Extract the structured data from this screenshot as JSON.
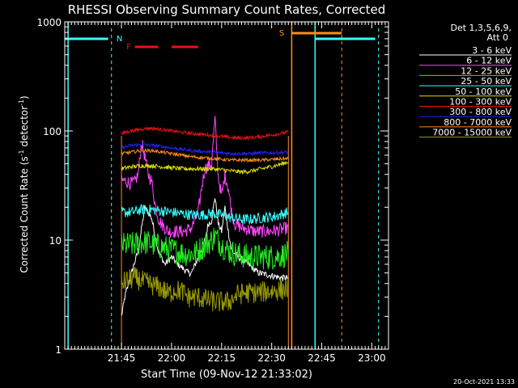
{
  "chart_data": {
    "type": "line",
    "title": "RHESSI Observing Summary Count Rates, Corrected",
    "xlabel": "Start Time (09-Nov-12 21:33:02)",
    "ylabel_main": "Corrected Count Rate (s",
    "ylabel_sup1": "-1",
    "ylabel_mid": " detector",
    "ylabel_sup2": "-1",
    "ylabel_end": ")",
    "y_scale": "log",
    "ylim": [
      1,
      1000
    ],
    "x_range_minutes": [
      -5,
      92
    ],
    "x_ticks": [
      {
        "label": "21:45",
        "t": 12
      },
      {
        "label": "22:00",
        "t": 27
      },
      {
        "label": "22:15",
        "t": 42
      },
      {
        "label": "22:30",
        "t": 57
      },
      {
        "label": "22:45",
        "t": 72
      },
      {
        "label": "23:00",
        "t": 87
      }
    ],
    "y_ticks": [
      {
        "label": "1",
        "v": 1
      },
      {
        "label": "10",
        "v": 10
      },
      {
        "label": "100",
        "v": 100
      },
      {
        "label": "1000",
        "v": 1000
      }
    ],
    "legend": {
      "header1": "Det 1,3,5,6,9,",
      "header2": "Att 0",
      "entries": [
        {
          "name": "3 - 6 keV",
          "color": "#ffffff"
        },
        {
          "name": "6 - 12 keV",
          "color": "#ff44ff"
        },
        {
          "name": "12 - 25 keV",
          "color": "#22ee22"
        },
        {
          "name": "25 - 50 keV",
          "color": "#33ffff"
        },
        {
          "name": "50 - 100 keV",
          "color": "#dddd00"
        },
        {
          "name": "100 - 300 keV",
          "color": "#ee1111"
        },
        {
          "name": "300 - 800 keV",
          "color": "#2222ff"
        },
        {
          "name": "800 - 7000 keV",
          "color": "#ff8c1a"
        },
        {
          "name": "7000 - 15000 keV",
          "color": "#999900"
        }
      ]
    },
    "series": [
      {
        "name": "3 - 6 keV",
        "color": "#ffffff",
        "points": [
          [
            12,
            2
          ],
          [
            13,
            3
          ],
          [
            15,
            5
          ],
          [
            17,
            8
          ],
          [
            19,
            20
          ],
          [
            21,
            16
          ],
          [
            23,
            8
          ],
          [
            25,
            6
          ],
          [
            27,
            7
          ],
          [
            29,
            6
          ],
          [
            32,
            5
          ],
          [
            33,
            5
          ],
          [
            35,
            7
          ],
          [
            37,
            10
          ],
          [
            38,
            14
          ],
          [
            39,
            15
          ],
          [
            40,
            25
          ],
          [
            41,
            14
          ],
          [
            42,
            12
          ],
          [
            43,
            20
          ],
          [
            44,
            12
          ],
          [
            45,
            8
          ],
          [
            47,
            7
          ],
          [
            50,
            6
          ],
          [
            53,
            5
          ],
          [
            56,
            4.8
          ],
          [
            60,
            4.5
          ],
          [
            62,
            4.5
          ]
        ]
      },
      {
        "name": "6 - 12 keV",
        "color": "#ff44ff",
        "points": [
          [
            12,
            35
          ],
          [
            13,
            35
          ],
          [
            14,
            34
          ],
          [
            15,
            33
          ],
          [
            16,
            34
          ],
          [
            17,
            40
          ],
          [
            18,
            80
          ],
          [
            19,
            58
          ],
          [
            20,
            40
          ],
          [
            21,
            35
          ],
          [
            22,
            22
          ],
          [
            23,
            16
          ],
          [
            24,
            14
          ],
          [
            25,
            13
          ],
          [
            26,
            12
          ],
          [
            28,
            12
          ],
          [
            31,
            12
          ],
          [
            33,
            13
          ],
          [
            35,
            18
          ],
          [
            36,
            30
          ],
          [
            37,
            45
          ],
          [
            38,
            48
          ],
          [
            39,
            50
          ],
          [
            40,
            130
          ],
          [
            41,
            38
          ],
          [
            42,
            25
          ],
          [
            43,
            40
          ],
          [
            44,
            30
          ],
          [
            45,
            18
          ],
          [
            46,
            14
          ],
          [
            48,
            13
          ],
          [
            52,
            12
          ],
          [
            56,
            12
          ],
          [
            60,
            12.5
          ],
          [
            62,
            13
          ]
        ]
      },
      {
        "name": "12 - 25 keV",
        "color": "#22ee22",
        "points": [
          [
            12,
            9
          ],
          [
            15,
            9
          ],
          [
            18,
            9.5
          ],
          [
            20,
            9.5
          ],
          [
            22,
            9
          ],
          [
            25,
            8.5
          ],
          [
            28,
            8
          ],
          [
            31,
            7.5
          ],
          [
            34,
            7.5
          ],
          [
            37,
            9
          ],
          [
            39,
            10
          ],
          [
            40,
            11
          ],
          [
            42,
            9
          ],
          [
            44,
            8
          ],
          [
            46,
            7.5
          ],
          [
            50,
            7
          ],
          [
            54,
            7
          ],
          [
            58,
            7
          ],
          [
            62,
            7.5
          ]
        ]
      },
      {
        "name": "25 - 50 keV",
        "color": "#33ffff",
        "points": [
          [
            12,
            18
          ],
          [
            15,
            18
          ],
          [
            18,
            19
          ],
          [
            21,
            19
          ],
          [
            24,
            18.5
          ],
          [
            27,
            18
          ],
          [
            30,
            17.5
          ],
          [
            33,
            17
          ],
          [
            36,
            17
          ],
          [
            39,
            17.5
          ],
          [
            42,
            17
          ],
          [
            45,
            16
          ],
          [
            48,
            15.5
          ],
          [
            51,
            15.5
          ],
          [
            54,
            16
          ],
          [
            58,
            16.5
          ],
          [
            62,
            18
          ]
        ]
      },
      {
        "name": "50 - 100 keV",
        "color": "#dddd00",
        "points": [
          [
            12,
            45
          ],
          [
            15,
            47
          ],
          [
            18,
            48
          ],
          [
            21,
            48
          ],
          [
            24,
            47
          ],
          [
            27,
            46
          ],
          [
            30,
            45
          ],
          [
            33,
            45
          ],
          [
            36,
            45
          ],
          [
            39,
            45
          ],
          [
            42,
            44
          ],
          [
            45,
            43
          ],
          [
            48,
            42
          ],
          [
            51,
            43
          ],
          [
            54,
            45
          ],
          [
            58,
            48
          ],
          [
            62,
            52
          ]
        ]
      },
      {
        "name": "100 - 300 keV",
        "color": "#ee1111",
        "points": [
          [
            12,
            95
          ],
          [
            15,
            100
          ],
          [
            18,
            104
          ],
          [
            21,
            106
          ],
          [
            24,
            103
          ],
          [
            27,
            100
          ],
          [
            30,
            97
          ],
          [
            33,
            95
          ],
          [
            36,
            93
          ],
          [
            39,
            91
          ],
          [
            42,
            89
          ],
          [
            45,
            87
          ],
          [
            48,
            86
          ],
          [
            51,
            87
          ],
          [
            54,
            89
          ],
          [
            58,
            93
          ],
          [
            62,
            98
          ]
        ]
      },
      {
        "name": "300 - 800 keV",
        "color": "#2222ff",
        "points": [
          [
            12,
            70
          ],
          [
            15,
            74
          ],
          [
            18,
            75
          ],
          [
            21,
            74
          ],
          [
            24,
            72
          ],
          [
            27,
            70
          ],
          [
            30,
            68
          ],
          [
            33,
            66
          ],
          [
            36,
            65
          ],
          [
            39,
            64
          ],
          [
            42,
            63
          ],
          [
            45,
            62
          ],
          [
            48,
            62
          ],
          [
            51,
            62
          ],
          [
            54,
            63
          ],
          [
            58,
            63
          ],
          [
            62,
            64
          ]
        ]
      },
      {
        "name": "800 - 7000 keV",
        "color": "#ff8c1a",
        "points": [
          [
            12,
            62
          ],
          [
            15,
            64
          ],
          [
            18,
            66
          ],
          [
            21,
            66
          ],
          [
            24,
            64
          ],
          [
            27,
            62
          ],
          [
            30,
            60
          ],
          [
            33,
            58
          ],
          [
            36,
            57
          ],
          [
            39,
            56
          ],
          [
            42,
            55
          ],
          [
            45,
            54
          ],
          [
            48,
            54
          ],
          [
            51,
            54
          ],
          [
            54,
            54
          ],
          [
            58,
            55
          ],
          [
            62,
            56
          ]
        ]
      },
      {
        "name": "7000 - 15000 keV",
        "color": "#999900",
        "points": [
          [
            12,
            4
          ],
          [
            14,
            4.3
          ],
          [
            16,
            4.5
          ],
          [
            18,
            4.2
          ],
          [
            20,
            4
          ],
          [
            22,
            3.8
          ],
          [
            24,
            3.6
          ],
          [
            26,
            3.2
          ],
          [
            28,
            3.5
          ],
          [
            30,
            3.4
          ],
          [
            32,
            3
          ],
          [
            35,
            3
          ],
          [
            38,
            2.8
          ],
          [
            41,
            2.7
          ],
          [
            44,
            2.7
          ],
          [
            47,
            3.2
          ],
          [
            50,
            3.3
          ],
          [
            53,
            3.3
          ],
          [
            56,
            3.4
          ],
          [
            60,
            3.5
          ],
          [
            62,
            3.6
          ]
        ]
      }
    ],
    "annotations": {
      "flags": [
        {
          "label": "N",
          "color": "#33ffff"
        },
        {
          "label": "F",
          "color": "#ee1111"
        },
        {
          "label": "S",
          "color": "#ff8c1a"
        }
      ],
      "cyan_bars": [
        [
          -5,
          8
        ],
        [
          70,
          88
        ]
      ],
      "red_bars": [
        [
          16,
          23
        ],
        [
          27,
          35
        ]
      ],
      "orange_bar": [
        63,
        78
      ],
      "cyan_dashed_t": [
        9,
        89
      ],
      "cyan_solid_t": [
        -4,
        70
      ],
      "orange_solid_t": [
        63
      ],
      "orange_dashed_t": [
        78
      ],
      "orange_data_edge_t": [
        12,
        62
      ]
    }
  },
  "footer": {
    "timestamp": "20-Oct-2021 13:33"
  }
}
